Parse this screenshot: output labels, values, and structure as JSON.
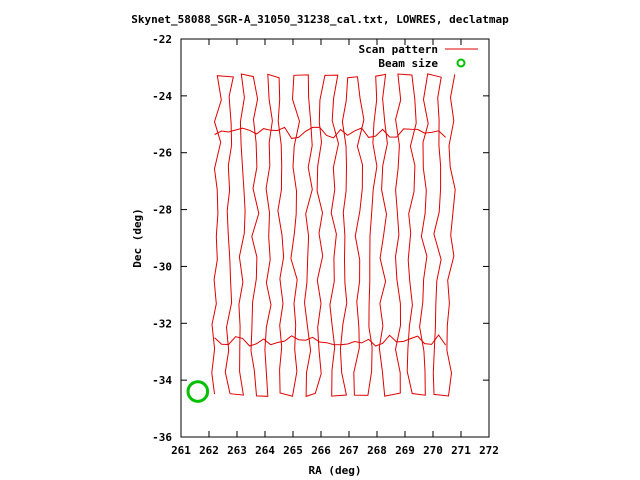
{
  "chart_data": {
    "type": "line",
    "title": "Skynet_58088_SGR-A_31050_31238_cal.txt, LOWRES, declatmap",
    "xlabel": "RA (deg)",
    "ylabel": "Dec (deg)",
    "xlim": [
      261,
      272
    ],
    "ylim": [
      -36,
      -22
    ],
    "xticks": [
      "261",
      "262",
      "263",
      "264",
      "265",
      "266",
      "267",
      "268",
      "269",
      "270",
      "271",
      "272"
    ],
    "yticks": [
      "-22",
      "-24",
      "-26",
      "-28",
      "-30",
      "-32",
      "-34",
      "-36"
    ],
    "grid": false,
    "legend_position": "top-right",
    "series": [
      {
        "name": "Scan pattern",
        "color": "#e00000",
        "scan_columns_ra": [
          262.2,
          262.7,
          263.1,
          263.6,
          264.1,
          264.5,
          265.0,
          265.5,
          265.9,
          266.4,
          266.8,
          267.3,
          267.8,
          268.2,
          268.7,
          269.2,
          269.6,
          270.1,
          270.6
        ],
        "dec_range": [
          -34.5,
          -23.3
        ]
      },
      {
        "name": "Beam size",
        "color": "#00c000",
        "x": [
          261.6
        ],
        "y": [
          -34.4
        ],
        "radius_deg": 0.35
      }
    ]
  }
}
